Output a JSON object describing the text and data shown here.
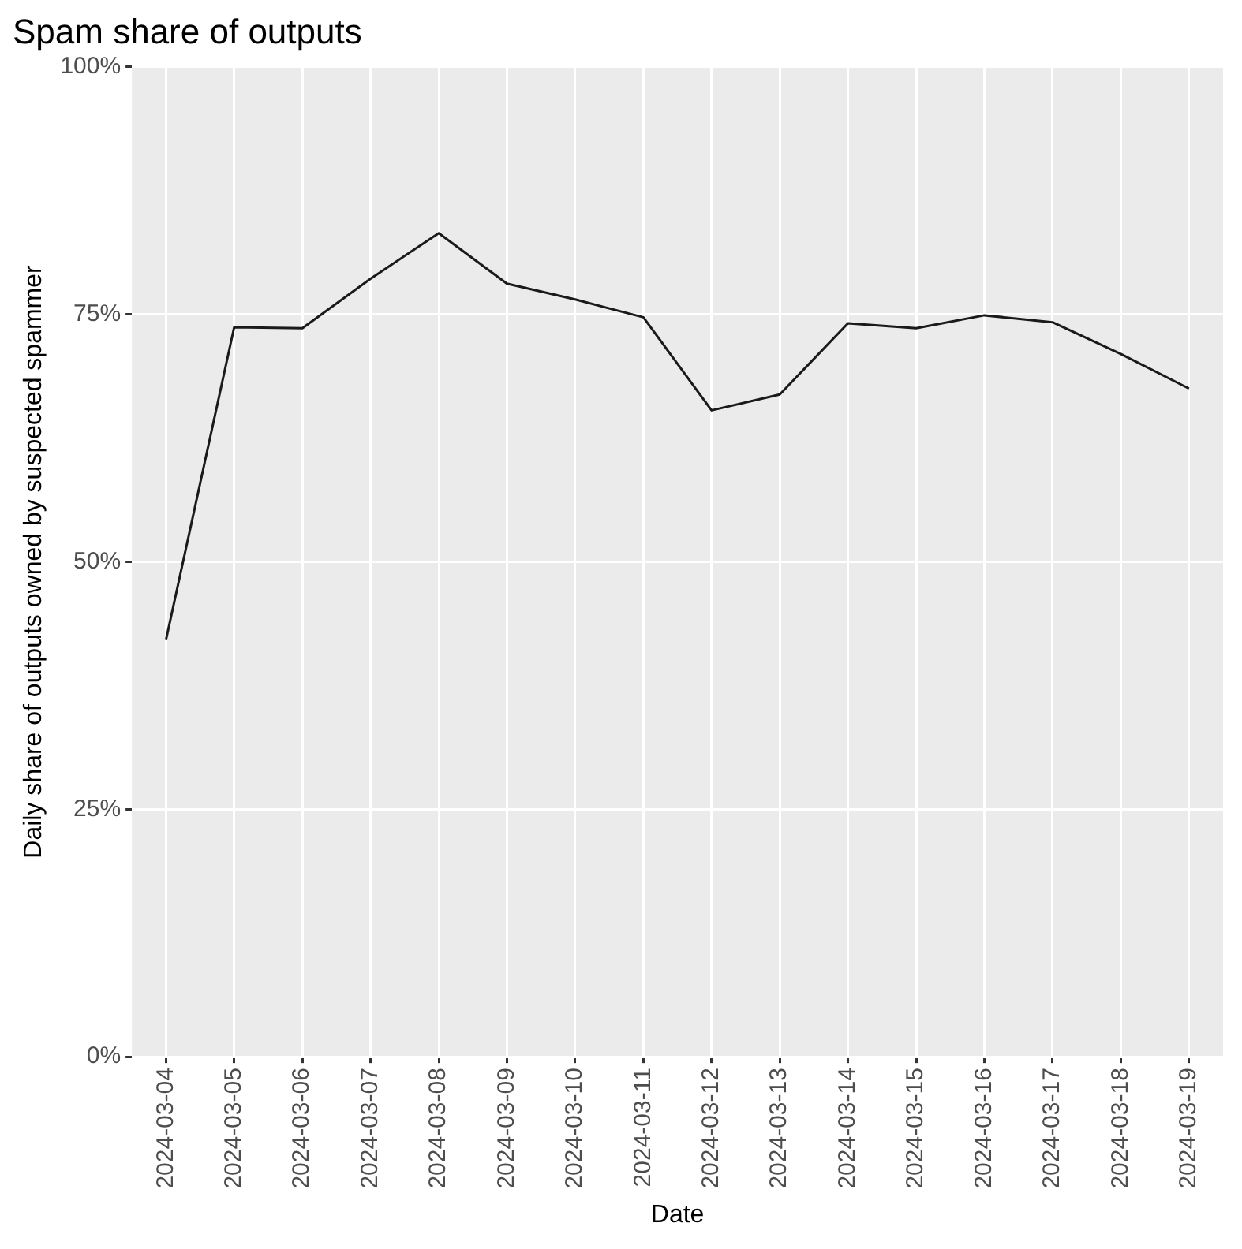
{
  "chart_data": {
    "type": "line",
    "title": "Spam share of outputs",
    "xlabel": "Date",
    "ylabel": "Daily share of outputs owned by suspected spammer",
    "categories": [
      "2024-03-04",
      "2024-03-05",
      "2024-03-06",
      "2024-03-07",
      "2024-03-08",
      "2024-03-09",
      "2024-03-10",
      "2024-03-11",
      "2024-03-12",
      "2024-03-13",
      "2024-03-14",
      "2024-03-15",
      "2024-03-16",
      "2024-03-17",
      "2024-03-18",
      "2024-03-19"
    ],
    "series": [
      {
        "color": "#1a1a1a",
        "values": [
          42.1,
          73.7,
          73.6,
          78.6,
          83.2,
          78.1,
          76.5,
          74.7,
          65.3,
          66.9,
          74.1,
          73.6,
          74.9,
          74.2,
          71.0,
          67.5
        ]
      }
    ],
    "ylim": [
      0,
      100
    ],
    "yticks": [
      {
        "value": 0,
        "label": "0%"
      },
      {
        "value": 25,
        "label": "25%"
      },
      {
        "value": 50,
        "label": "50%"
      },
      {
        "value": 75,
        "label": "75%"
      },
      {
        "value": 100,
        "label": "100%"
      }
    ],
    "grid": true,
    "legend": false,
    "marker": "none",
    "line_style": "solid"
  }
}
